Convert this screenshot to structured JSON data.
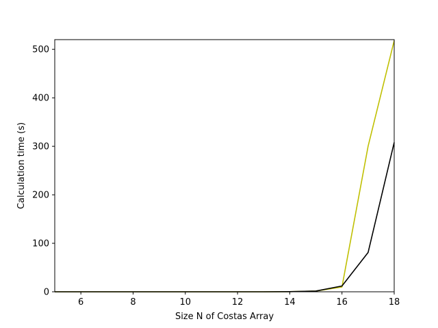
{
  "chart_data": {
    "type": "line",
    "title": "",
    "xlabel": "Size N of Costas Array",
    "ylabel": "Calculation time (s)",
    "xlim": [
      5,
      18
    ],
    "ylim": [
      0,
      520
    ],
    "x_ticks": [
      6,
      8,
      10,
      12,
      14,
      16,
      18
    ],
    "y_ticks": [
      0,
      100,
      200,
      300,
      400,
      500
    ],
    "grid": false,
    "legend": "none",
    "series": [
      {
        "color": "#bfbf00",
        "x": [
          5,
          6,
          7,
          8,
          9,
          10,
          11,
          12,
          13,
          14,
          15,
          16,
          17,
          18
        ],
        "y": [
          0,
          0,
          0,
          0,
          0,
          0,
          0,
          0,
          0,
          0.3,
          1.5,
          10,
          300,
          518
        ]
      },
      {
        "color": "#000000",
        "x": [
          5,
          6,
          7,
          8,
          9,
          10,
          11,
          12,
          13,
          14,
          15,
          16,
          17,
          18
        ],
        "y": [
          0,
          0,
          0,
          0,
          0,
          0,
          0,
          0,
          0,
          0.3,
          1.5,
          12,
          81,
          308
        ]
      }
    ]
  }
}
